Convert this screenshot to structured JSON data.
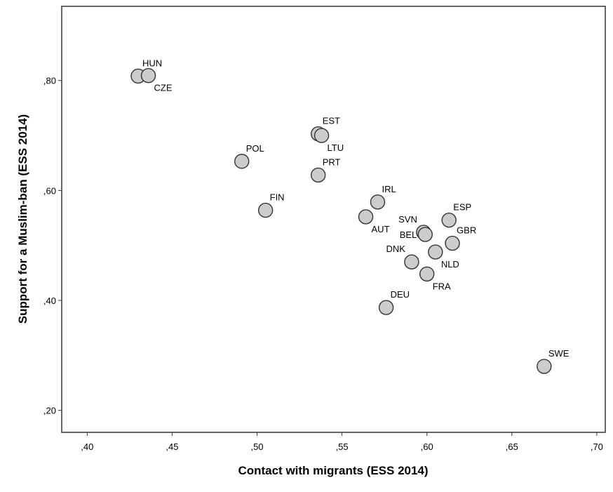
{
  "chart_data": {
    "type": "scatter",
    "title": "",
    "xlabel": "Contact with migrants (ESS 2014)",
    "ylabel": "Support for a Muslim-ban (ESS 2014)",
    "xlim": [
      0.385,
      0.705
    ],
    "ylim": [
      0.16,
      0.935
    ],
    "x_ticks": [
      0.4,
      0.45,
      0.5,
      0.55,
      0.6,
      0.65,
      0.7
    ],
    "x_tick_labels": [
      ",40",
      ",45",
      ",50",
      ",55",
      ",60",
      ",65",
      ",70"
    ],
    "y_ticks": [
      0.2,
      0.4,
      0.6,
      0.8
    ],
    "y_tick_labels": [
      ",20",
      ",40",
      ",60",
      ",80"
    ],
    "grid": false,
    "marker_fill": "#cccccc",
    "marker_stroke": "#333333",
    "points": [
      {
        "label": "HUN",
        "x": 0.43,
        "y": 0.808,
        "label_pos": "above-right"
      },
      {
        "label": "CZE",
        "x": 0.436,
        "y": 0.809,
        "label_pos": "below-right"
      },
      {
        "label": "EST",
        "x": 0.536,
        "y": 0.703,
        "label_pos": "above-right"
      },
      {
        "label": "LTU",
        "x": 0.538,
        "y": 0.7,
        "label_pos": "below-right"
      },
      {
        "label": "POL",
        "x": 0.491,
        "y": 0.653,
        "label_pos": "above-right"
      },
      {
        "label": "PRT",
        "x": 0.536,
        "y": 0.628,
        "label_pos": "above-right"
      },
      {
        "label": "FIN",
        "x": 0.505,
        "y": 0.564,
        "label_pos": "above-right"
      },
      {
        "label": "IRL",
        "x": 0.571,
        "y": 0.579,
        "label_pos": "above-right"
      },
      {
        "label": "AUT",
        "x": 0.564,
        "y": 0.552,
        "label_pos": "below-right"
      },
      {
        "label": "SVN",
        "x": 0.598,
        "y": 0.524,
        "label_pos": "above-left"
      },
      {
        "label": "BEL",
        "x": 0.599,
        "y": 0.52,
        "label_pos": "left"
      },
      {
        "label": "ESP",
        "x": 0.613,
        "y": 0.546,
        "label_pos": "above-right"
      },
      {
        "label": "GBR",
        "x": 0.615,
        "y": 0.504,
        "label_pos": "above-right"
      },
      {
        "label": "DNK",
        "x": 0.591,
        "y": 0.47,
        "label_pos": "above-left"
      },
      {
        "label": "NLD",
        "x": 0.605,
        "y": 0.488,
        "label_pos": "below-right"
      },
      {
        "label": "FRA",
        "x": 0.6,
        "y": 0.448,
        "label_pos": "below-right"
      },
      {
        "label": "DEU",
        "x": 0.576,
        "y": 0.387,
        "label_pos": "above-right"
      },
      {
        "label": "SWE",
        "x": 0.669,
        "y": 0.28,
        "label_pos": "above-right"
      }
    ]
  }
}
